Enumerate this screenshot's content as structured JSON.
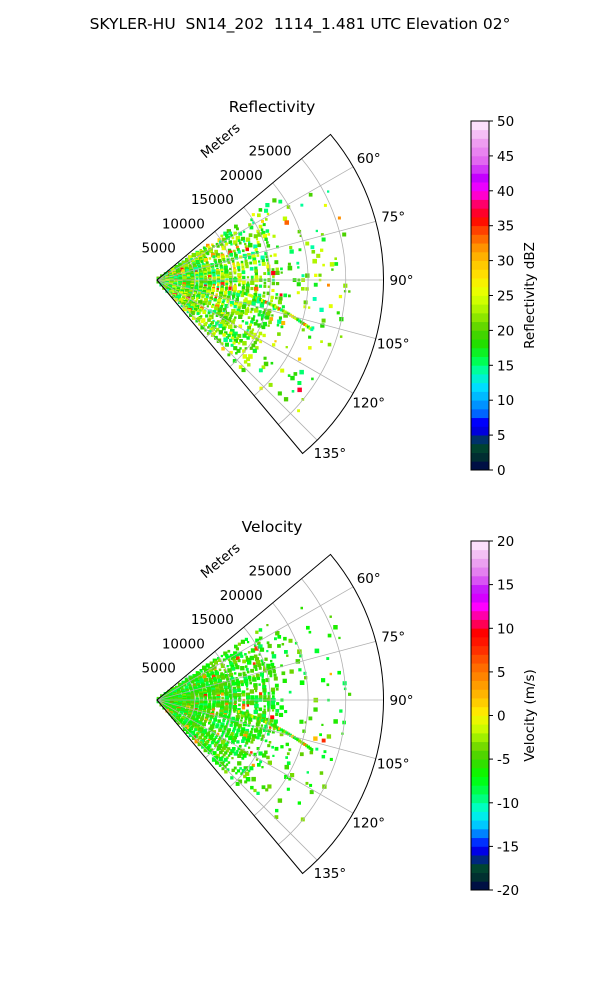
{
  "figure": {
    "suptitle": "SKYLER-HU  SN14_202  1114_1.481 UTC Elevation 02°"
  },
  "chart_data": [
    {
      "type": "polar-sector",
      "title": "Reflectivity",
      "radial_label": "Meters",
      "theta_range_deg": [
        50,
        140
      ],
      "r_range_m": [
        0,
        30000
      ],
      "r_ticks": [
        5000,
        10000,
        15000,
        20000,
        25000
      ],
      "r_tick_labels": [
        "5000",
        "10000",
        "15000",
        "20000",
        "25000"
      ],
      "theta_ticks_deg": [
        60,
        75,
        90,
        105,
        120,
        135
      ],
      "theta_tick_labels": [
        "60°",
        "75°",
        "90°",
        "105°",
        "120°",
        "135°"
      ],
      "grid": true,
      "dominant_value_range": [
        14,
        26
      ],
      "colorbar": {
        "label": "Reflectivity dBZ",
        "range": [
          0,
          50
        ],
        "ticks": [
          0,
          5,
          10,
          15,
          20,
          25,
          30,
          35,
          40,
          45,
          50
        ],
        "tick_labels": [
          "0",
          "5",
          "10",
          "15",
          "20",
          "25",
          "30",
          "35",
          "40",
          "45",
          "50"
        ],
        "colormap_stops": [
          {
            "v": 0,
            "c": "#00004d"
          },
          {
            "v": 2,
            "c": "#003030"
          },
          {
            "v": 4,
            "c": "#005030"
          },
          {
            "v": 5,
            "c": "#0000cc"
          },
          {
            "v": 7,
            "c": "#0000ff"
          },
          {
            "v": 8,
            "c": "#0060ff"
          },
          {
            "v": 10,
            "c": "#00a8ff"
          },
          {
            "v": 12,
            "c": "#00e0ff"
          },
          {
            "v": 14,
            "c": "#00ffb0"
          },
          {
            "v": 16,
            "c": "#00ff40"
          },
          {
            "v": 18,
            "c": "#20e000"
          },
          {
            "v": 20,
            "c": "#50d000"
          },
          {
            "v": 22,
            "c": "#90e800"
          },
          {
            "v": 24,
            "c": "#c8ff00"
          },
          {
            "v": 26,
            "c": "#f0ff00"
          },
          {
            "v": 28,
            "c": "#ffe000"
          },
          {
            "v": 30,
            "c": "#ffc000"
          },
          {
            "v": 32,
            "c": "#ff9000"
          },
          {
            "v": 34,
            "c": "#ff5000"
          },
          {
            "v": 36,
            "c": "#ff0000"
          },
          {
            "v": 38,
            "c": "#ff0060"
          },
          {
            "v": 40,
            "c": "#ff00ff"
          },
          {
            "v": 42,
            "c": "#c000ff"
          },
          {
            "v": 44,
            "c": "#e060f0"
          },
          {
            "v": 47,
            "c": "#f0a0f0"
          },
          {
            "v": 50,
            "c": "#fff0ff"
          }
        ]
      }
    },
    {
      "type": "polar-sector",
      "title": "Velocity",
      "radial_label": "Meters",
      "theta_range_deg": [
        50,
        140
      ],
      "r_range_m": [
        0,
        30000
      ],
      "r_ticks": [
        5000,
        10000,
        15000,
        20000,
        25000
      ],
      "r_tick_labels": [
        "5000",
        "10000",
        "15000",
        "20000",
        "25000"
      ],
      "theta_ticks_deg": [
        60,
        75,
        90,
        105,
        120,
        135
      ],
      "theta_tick_labels": [
        "60°",
        "75°",
        "90°",
        "105°",
        "120°",
        "135°"
      ],
      "grid": true,
      "dominant_value_range": [
        -9,
        -3
      ],
      "colorbar": {
        "label": "Velocity (m/s)",
        "range": [
          -20,
          20
        ],
        "ticks": [
          -20,
          -15,
          -10,
          -5,
          0,
          5,
          10,
          15,
          20
        ],
        "tick_labels": [
          "-20",
          "-15",
          "-10",
          "-5",
          "0",
          "5",
          "10",
          "15",
          "20"
        ],
        "colormap_stops": [
          {
            "v": -20,
            "c": "#00004d"
          },
          {
            "v": -18.5,
            "c": "#003030"
          },
          {
            "v": -17,
            "c": "#005030"
          },
          {
            "v": -16,
            "c": "#0000cc"
          },
          {
            "v": -15,
            "c": "#0000ff"
          },
          {
            "v": -14,
            "c": "#0060ff"
          },
          {
            "v": -12.5,
            "c": "#00c8ff"
          },
          {
            "v": -11,
            "c": "#00ffe0"
          },
          {
            "v": -9,
            "c": "#00ff60"
          },
          {
            "v": -7,
            "c": "#00ff00"
          },
          {
            "v": -5.5,
            "c": "#30e000"
          },
          {
            "v": -4,
            "c": "#60d000"
          },
          {
            "v": -2.5,
            "c": "#a0f000"
          },
          {
            "v": -1,
            "c": "#e0ff00"
          },
          {
            "v": 0.5,
            "c": "#ffe800"
          },
          {
            "v": 2,
            "c": "#ffc000"
          },
          {
            "v": 4,
            "c": "#ff9000"
          },
          {
            "v": 6,
            "c": "#ff6000"
          },
          {
            "v": 8,
            "c": "#ff2000"
          },
          {
            "v": 9.5,
            "c": "#ff0000"
          },
          {
            "v": 11,
            "c": "#ff0080"
          },
          {
            "v": 12.5,
            "c": "#ff00ff"
          },
          {
            "v": 14,
            "c": "#c000ff"
          },
          {
            "v": 16,
            "c": "#e070f0"
          },
          {
            "v": 18,
            "c": "#f0b0f0"
          },
          {
            "v": 20,
            "c": "#fff0ff"
          }
        ]
      }
    }
  ]
}
